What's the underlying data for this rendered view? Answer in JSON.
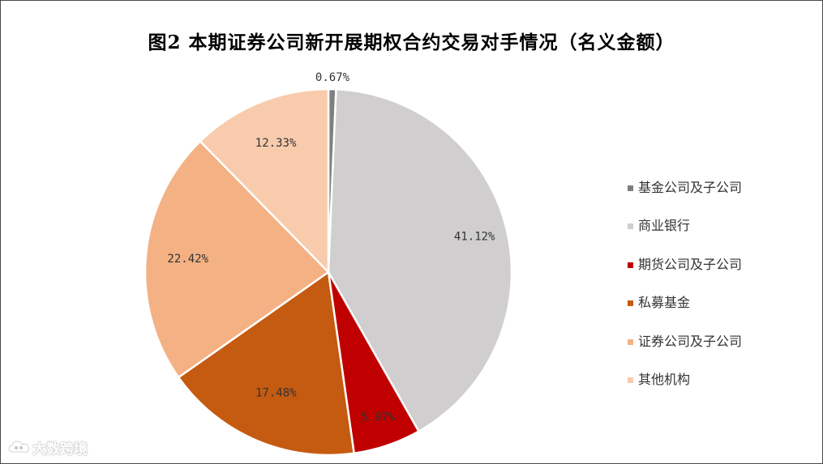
{
  "title": "图2 本期证券公司新开展期权合约交易对手情况（名义金额）",
  "chart_data": {
    "type": "pie",
    "title": "图2 本期证券公司新开展期权合约交易对手情况（名义金额）",
    "start_angle_deg": 0,
    "direction": "clockwise",
    "legend_position": "right",
    "series": [
      {
        "name": "基金公司及子公司",
        "value": 0.67,
        "label": "0.67%",
        "color": "#7f7f7f"
      },
      {
        "name": "商业银行",
        "value": 41.12,
        "label": "41.12%",
        "color": "#d0cece"
      },
      {
        "name": "期货公司及子公司",
        "value": 5.97,
        "label": "5.97%",
        "color": "#c00000"
      },
      {
        "name": "私募基金",
        "value": 17.48,
        "label": "17.48%",
        "color": "#c55a11"
      },
      {
        "name": "证券公司及子公司",
        "value": 22.42,
        "label": "22.42%",
        "color": "#f4b183"
      },
      {
        "name": "其他机构",
        "value": 12.33,
        "label": "12.33%",
        "color": "#f8cbad"
      }
    ]
  },
  "watermark": {
    "text": "大数跨境",
    "icon": "cloud-logo-icon"
  }
}
